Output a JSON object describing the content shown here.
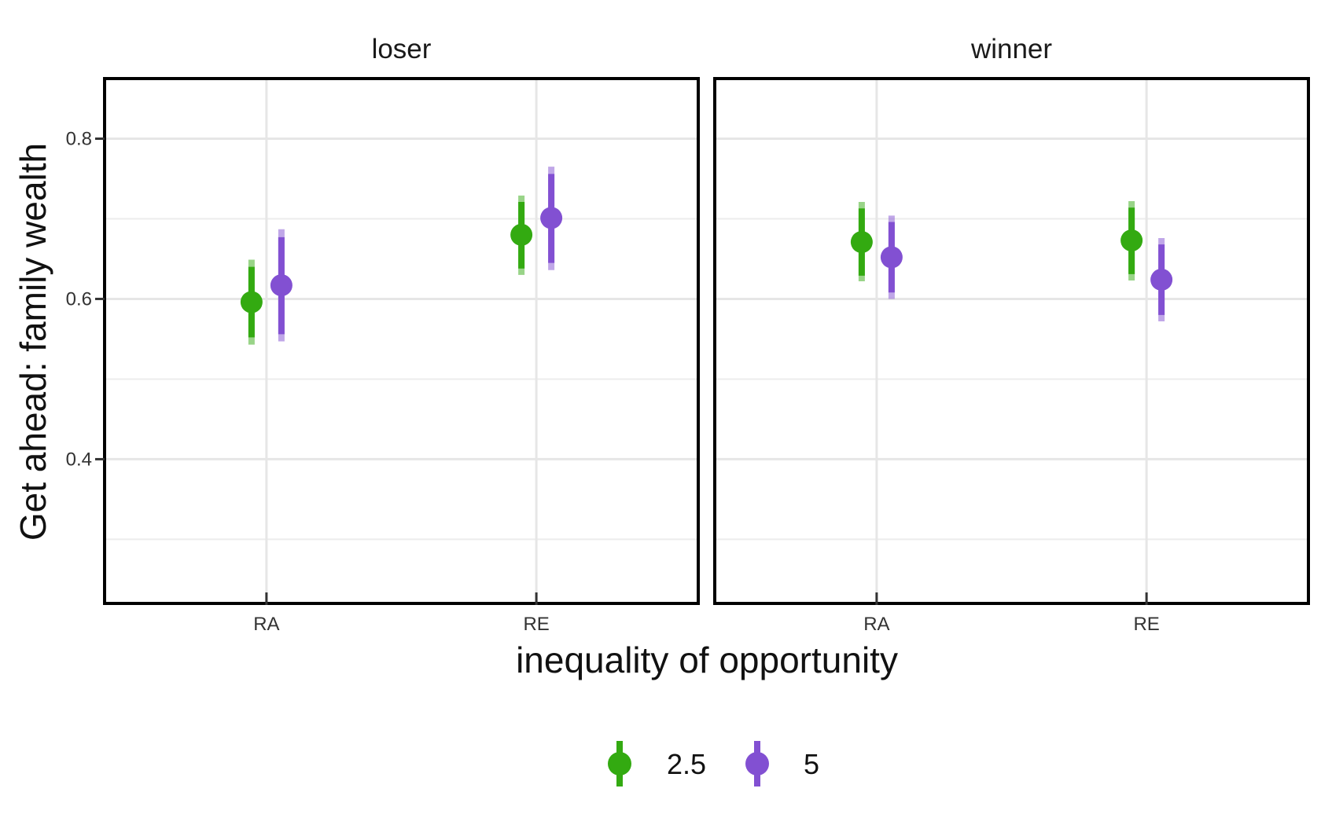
{
  "chart_data": {
    "type": "pointrange",
    "ylabel": "Get ahead: family wealth",
    "xlabel": "inequality of opportunity",
    "categories": [
      "RA",
      "RE"
    ],
    "ylim": [
      0.22,
      0.875
    ],
    "yticks": [
      0.4,
      0.6,
      0.8
    ],
    "ytick_labels": [
      "0.4",
      "0.6",
      "0.8"
    ],
    "grid": true,
    "legend_position": "bottom",
    "series": [
      {
        "name": "2.5",
        "color": "#33aa11"
      },
      {
        "name": "5",
        "color": "#8250d2"
      }
    ],
    "panels": [
      {
        "title": "loser",
        "points": [
          {
            "category": "RA",
            "series": "2.5",
            "estimate": 0.596,
            "ci_inner": [
              0.552,
              0.64
            ],
            "ci_outer": [
              0.543,
              0.649
            ]
          },
          {
            "category": "RA",
            "series": "5",
            "estimate": 0.617,
            "ci_inner": [
              0.556,
              0.677
            ],
            "ci_outer": [
              0.547,
              0.687
            ]
          },
          {
            "category": "RE",
            "series": "2.5",
            "estimate": 0.68,
            "ci_inner": [
              0.638,
              0.721
            ],
            "ci_outer": [
              0.63,
              0.729
            ]
          },
          {
            "category": "RE",
            "series": "5",
            "estimate": 0.701,
            "ci_inner": [
              0.645,
              0.756
            ],
            "ci_outer": [
              0.636,
              0.765
            ]
          }
        ]
      },
      {
        "title": "winner",
        "points": [
          {
            "category": "RA",
            "series": "2.5",
            "estimate": 0.671,
            "ci_inner": [
              0.629,
              0.713
            ],
            "ci_outer": [
              0.622,
              0.721
            ]
          },
          {
            "category": "RA",
            "series": "5",
            "estimate": 0.652,
            "ci_inner": [
              0.608,
              0.696
            ],
            "ci_outer": [
              0.6,
              0.704
            ]
          },
          {
            "category": "RE",
            "series": "2.5",
            "estimate": 0.673,
            "ci_inner": [
              0.631,
              0.714
            ],
            "ci_outer": [
              0.623,
              0.722
            ]
          },
          {
            "category": "RE",
            "series": "5",
            "estimate": 0.624,
            "ci_inner": [
              0.58,
              0.668
            ],
            "ci_outer": [
              0.572,
              0.676
            ]
          }
        ]
      }
    ]
  }
}
